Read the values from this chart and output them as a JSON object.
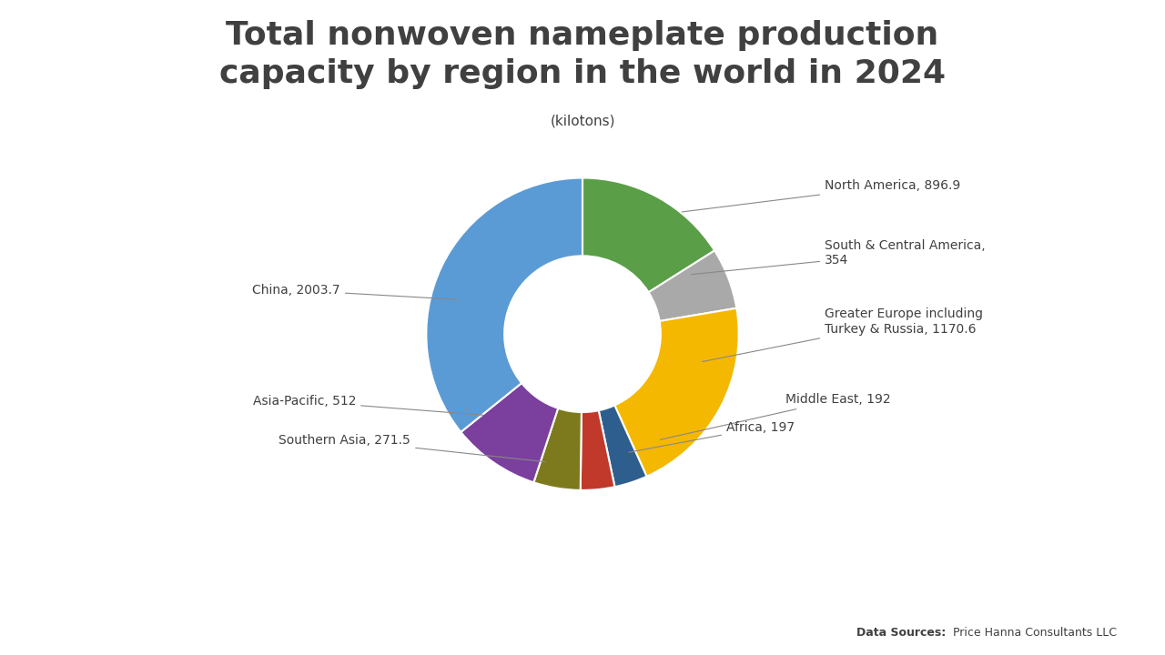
{
  "title": "Total nonwoven nameplate production\ncapacity by region in the world in 2024",
  "subtitle": "(kilotons)",
  "regions": [
    "North America",
    "South & Central America",
    "Greater Europe including Turkey & Russia",
    "Middle East",
    "Africa",
    "Southern Asia",
    "Asia-Pacific",
    "China"
  ],
  "values": [
    896.9,
    354,
    1170.6,
    192,
    197,
    271.5,
    512,
    2003.7
  ],
  "colors": [
    "#5a9e47",
    "#a9a9a9",
    "#f5b800",
    "#2e5e8e",
    "#c0392b",
    "#7d7a1e",
    "#7b3f9e",
    "#5b9bd5"
  ],
  "label_values": [
    "896.9",
    "354",
    "1170.6",
    "192",
    "197",
    "271.5",
    "512",
    "2003.7"
  ],
  "background_color": "#ffffff",
  "title_color": "#404040",
  "label_color": "#404040"
}
